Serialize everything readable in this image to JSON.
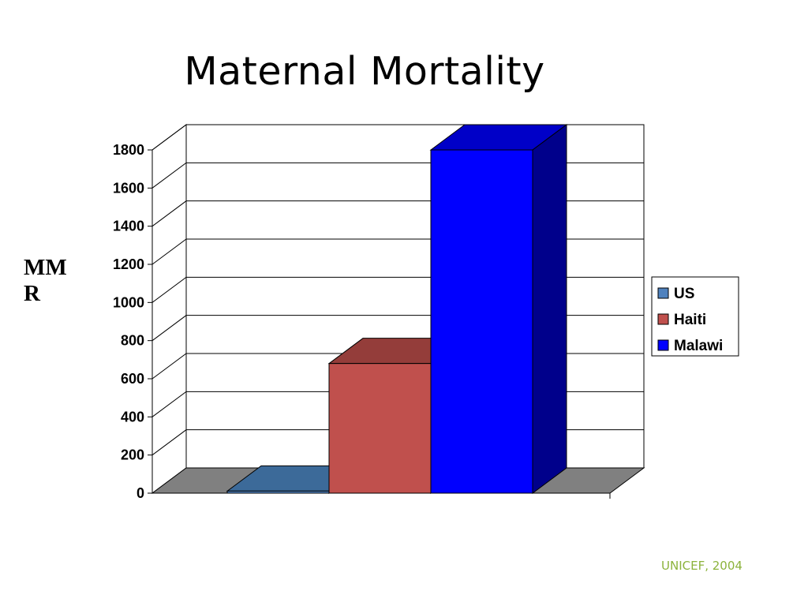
{
  "title": "Maternal Mortality",
  "source": "UNICEF, 2004",
  "chart_data": {
    "type": "bar",
    "style": "3d-column",
    "title": "Maternal Mortality",
    "ylabel": "MMR",
    "ylabel_lines": [
      "MM",
      "R"
    ],
    "xlabel": "",
    "ylim": [
      0,
      1800
    ],
    "yticks": [
      0,
      200,
      400,
      600,
      800,
      1000,
      1200,
      1400,
      1600,
      1800
    ],
    "grid": true,
    "legend": "right",
    "series": [
      {
        "name": "US",
        "values": [
          11
        ],
        "color": "#4f81bd",
        "top": "#3c6a99",
        "side": "#2d5582"
      },
      {
        "name": "Haiti",
        "values": [
          680
        ],
        "color": "#c0504d",
        "top": "#943d3a",
        "side": "#7a312f"
      },
      {
        "name": "Malawi",
        "values": [
          1800
        ],
        "color": "#0000ff",
        "top": "#0000c8",
        "side": "#00008b"
      }
    ],
    "floor_color": "#808080"
  }
}
